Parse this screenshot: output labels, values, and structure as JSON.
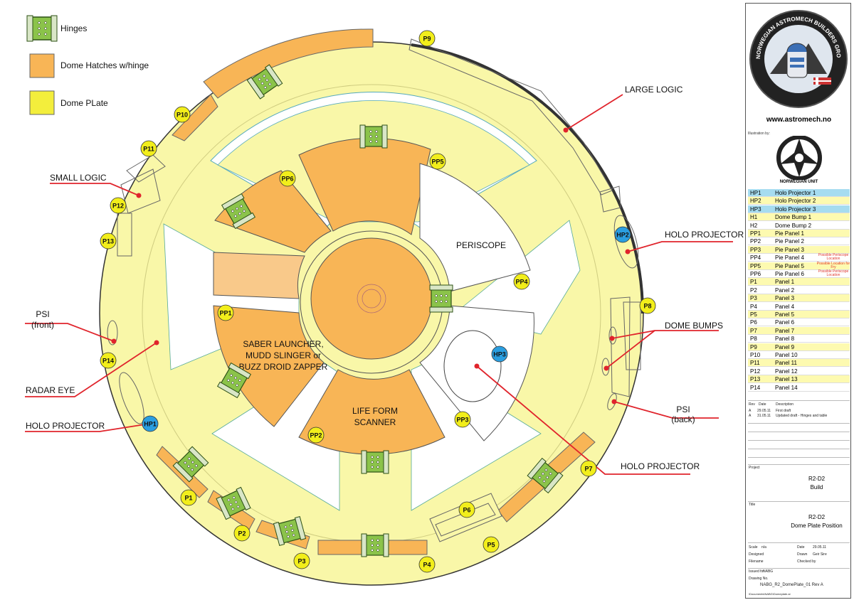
{
  "legend": {
    "hinges": "Hinges",
    "hatches": "Dome Hatches w/hinge",
    "plate": "Dome PLate"
  },
  "colors": {
    "plate": "#f9f7a8",
    "hatch": "#f8b556",
    "hatch_light": "#f9c98a",
    "hinge": "#8bc34a",
    "panel_badge": "#f2ee1b",
    "hp_badge": "#2a9ee0",
    "callout": "#e0242c",
    "legend_hp": "#a6dcf0",
    "legend_yellow": "#fdfab0"
  },
  "inner_labels": {
    "periscope": "PERISCOPE",
    "saber": [
      "SABER LAUNCHER,",
      "MUDD SLINGER or",
      "BUZZ DROID ZAPPER"
    ],
    "lifeform": [
      "LIFE FORM",
      "SCANNER"
    ]
  },
  "pie_badges": [
    "PP1",
    "PP2",
    "PP3",
    "PP4",
    "PP5",
    "PP6"
  ],
  "panel_badges": [
    "P1",
    "P2",
    "P3",
    "P4",
    "P5",
    "P6",
    "P7",
    "P8",
    "P9",
    "P10",
    "P11",
    "P12",
    "P13",
    "P14"
  ],
  "hp_badges": [
    "HP1",
    "HP2",
    "HP3"
  ],
  "callouts": {
    "large_logic": "LARGE LOGIC",
    "small_logic": "SMALL LOGIC",
    "holo_projector": "HOLO PROJECTOR",
    "dome_bumps": "DOME BUMPS",
    "psi_back": [
      "PSI",
      "(back)"
    ],
    "psi_front": [
      "PSI",
      "(front)"
    ],
    "radar_eye": "RADAR EYE"
  },
  "title_block": {
    "logo_text": "NORWEGIAN ASTROMECH BUILDERS GROUP",
    "website": "www.astromech.no",
    "illustration_by": "Illustration by:",
    "unit_name": "NORWEGIAN UNIT",
    "parts": [
      {
        "code": "HP1",
        "name": "Holo Projector 1",
        "note": ""
      },
      {
        "code": "HP2",
        "name": "Holo Projector 2",
        "note": ""
      },
      {
        "code": "HP3",
        "name": "Holo Projector 3",
        "note": ""
      },
      {
        "code": "H1",
        "name": "Dome Bump 1",
        "note": ""
      },
      {
        "code": "H2",
        "name": "Dome Bump 2",
        "note": ""
      },
      {
        "code": "PP1",
        "name": "Pie Panel 1",
        "note": ""
      },
      {
        "code": "PP2",
        "name": "Pie Panel 2",
        "note": ""
      },
      {
        "code": "PP3",
        "name": "Pie Panel 3",
        "note": ""
      },
      {
        "code": "PP4",
        "name": "Pie Panel 4",
        "note": "Possible Periscope Location"
      },
      {
        "code": "PP5",
        "name": "Pie Panel 5",
        "note": "Possible Location for Fry"
      },
      {
        "code": "PP6",
        "name": "Pie Panel 6",
        "note": "Possible Periscope Location"
      },
      {
        "code": "P1",
        "name": "Panel 1",
        "note": ""
      },
      {
        "code": "P2",
        "name": "Panel 2",
        "note": ""
      },
      {
        "code": "P3",
        "name": "Panel 3",
        "note": ""
      },
      {
        "code": "P4",
        "name": "Panel 4",
        "note": ""
      },
      {
        "code": "P5",
        "name": "Panel 5",
        "note": ""
      },
      {
        "code": "P6",
        "name": "Panel 6",
        "note": ""
      },
      {
        "code": "P7",
        "name": "Panel 7",
        "note": ""
      },
      {
        "code": "P8",
        "name": "Panel 8",
        "note": ""
      },
      {
        "code": "P9",
        "name": "Panel 9",
        "note": ""
      },
      {
        "code": "P10",
        "name": "Panel 10",
        "note": ""
      },
      {
        "code": "P11",
        "name": "Panel 11",
        "note": ""
      },
      {
        "code": "P12",
        "name": "Panel 12",
        "note": ""
      },
      {
        "code": "P13",
        "name": "Panel 13",
        "note": ""
      },
      {
        "code": "P14",
        "name": "Panel 14",
        "note": ""
      }
    ],
    "rev_header": {
      "rev": "Rev",
      "date": "Date",
      "desc": "Description"
    },
    "revisions": [
      {
        "rev": "A",
        "date": "29.05.11",
        "desc": "First draft"
      },
      {
        "rev": "A",
        "date": "31.05.11",
        "desc": "Updated draft - Hinges and table"
      }
    ],
    "project_label": "Project",
    "project": [
      "R2-D2",
      "Build"
    ],
    "title_label": "Title",
    "title": [
      "R2-D2",
      "Dome Plate Position"
    ],
    "scale_label": "Scale",
    "scale": "n/a",
    "date_label": "Date",
    "date": "29.05.11",
    "designed_label": "Designed",
    "drawn_label": "Drawn",
    "drawn": "Geir Sire",
    "filename_label": "Filename",
    "checked_label": "Checked by",
    "issued_label": "Issued for",
    "issued": "NABG",
    "drawing_label": "Drawing No.",
    "drawing_no": "NABG_R2_DomePlate_01 Rev A",
    "path": "\\Documents\\NABG\\Domeplate.ai"
  }
}
